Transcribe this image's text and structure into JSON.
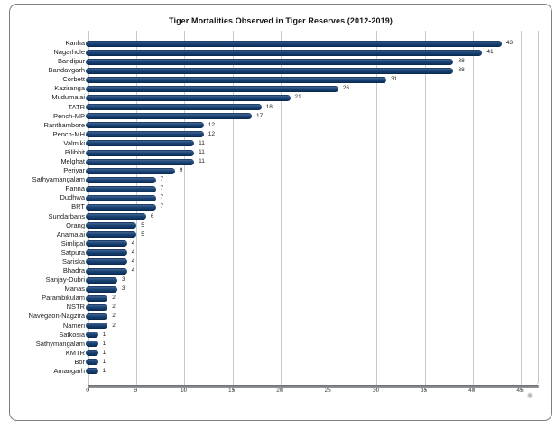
{
  "chart_data": {
    "type": "bar",
    "orientation": "horizontal",
    "title": "Tiger Mortalities Observed in Tiger Reserves (2012-2019)",
    "categories": [
      "Kanha",
      "Nagarhole",
      "Bandipur",
      "Bandavgarh",
      "Corbett",
      "Kaziranga",
      "Mudumalai",
      "TATR",
      "Pench-MP",
      "Ranthambore",
      "Pench-MH",
      "Valmiki",
      "Pilibhit",
      "Melghat",
      "Periyar",
      "Sathyamangalam",
      "Panna",
      "Dudhwa",
      "BRT",
      "Sundarbans",
      "Orang",
      "Anamalai",
      "Simlipal",
      "Satpura",
      "Sariska",
      "Bhadra",
      "Sanjay-Dubri",
      "Manas",
      "Parambikulam",
      "NSTR",
      "Navegaon-Nagzira",
      "Nameri",
      "Satkosia",
      "Sathymangalam",
      "KMTR",
      "Bor",
      "Amangarh"
    ],
    "values": [
      43,
      41,
      38,
      38,
      31,
      26,
      21,
      18,
      17,
      12,
      12,
      11,
      11,
      11,
      9,
      7,
      7,
      7,
      7,
      6,
      5,
      5,
      4,
      4,
      4,
      4,
      3,
      3,
      2,
      2,
      2,
      2,
      1,
      1,
      1,
      1,
      1
    ],
    "data_labels": true,
    "xlabel": "",
    "ylabel": "",
    "xlim": [
      0,
      45
    ],
    "x_ticks": [
      0,
      5,
      10,
      15,
      20,
      25,
      30,
      35,
      40,
      45
    ],
    "grid": "vertical-only",
    "legend": "none",
    "colors": {
      "bar": "#123c6d",
      "gridline": "#c6cbce",
      "axis_line": "#808488",
      "card_border": "#7e7e7e",
      "text": "#1c1c1c"
    }
  }
}
